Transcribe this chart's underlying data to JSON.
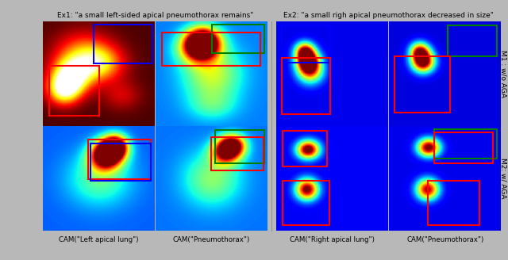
{
  "title1": "Ex1: \"a small left-sided apical pneumothorax remains\"",
  "title2": "Ex2: \"a small righ apical pneumothorax decreased in size\"",
  "row_labels": [
    "M1 : w/o AGA",
    "M2: w/ AGA"
  ],
  "col_labels_ex1": [
    "CAM(\"Left apical lung\")",
    "CAM(\"Pneumothorax\")"
  ],
  "col_labels_ex2": [
    "CAM(\"Right apical lung\")",
    "CAM(\"Pneumothorax\")"
  ],
  "bg_color": "#b8b8b8",
  "title_fontsize": 6.5,
  "label_fontsize": 6.2,
  "row_label_fontsize": 6.5
}
